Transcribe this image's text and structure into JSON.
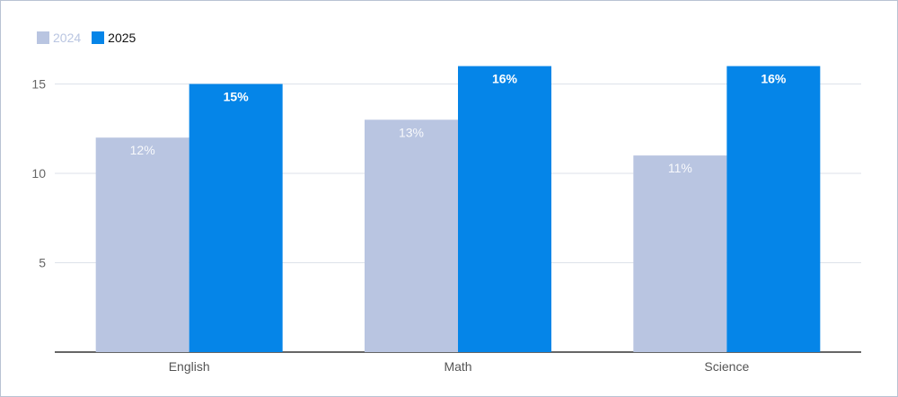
{
  "chart_data": {
    "type": "bar",
    "title": "",
    "xlabel": "",
    "ylabel": "",
    "categories": [
      "English",
      "Math",
      "Science"
    ],
    "series": [
      {
        "name": "2024",
        "values": [
          12,
          13,
          11
        ],
        "labels": [
          "12%",
          "13%",
          "11%"
        ],
        "color": "#b9c5e1"
      },
      {
        "name": "2025",
        "values": [
          15,
          16,
          16
        ],
        "labels": [
          "15%",
          "16%",
          "16%"
        ],
        "color": "#0585e8"
      }
    ],
    "ylim": [
      0,
      16
    ],
    "yticks": [
      "5",
      "10",
      "15"
    ],
    "grid": true,
    "legend": "top-left"
  }
}
